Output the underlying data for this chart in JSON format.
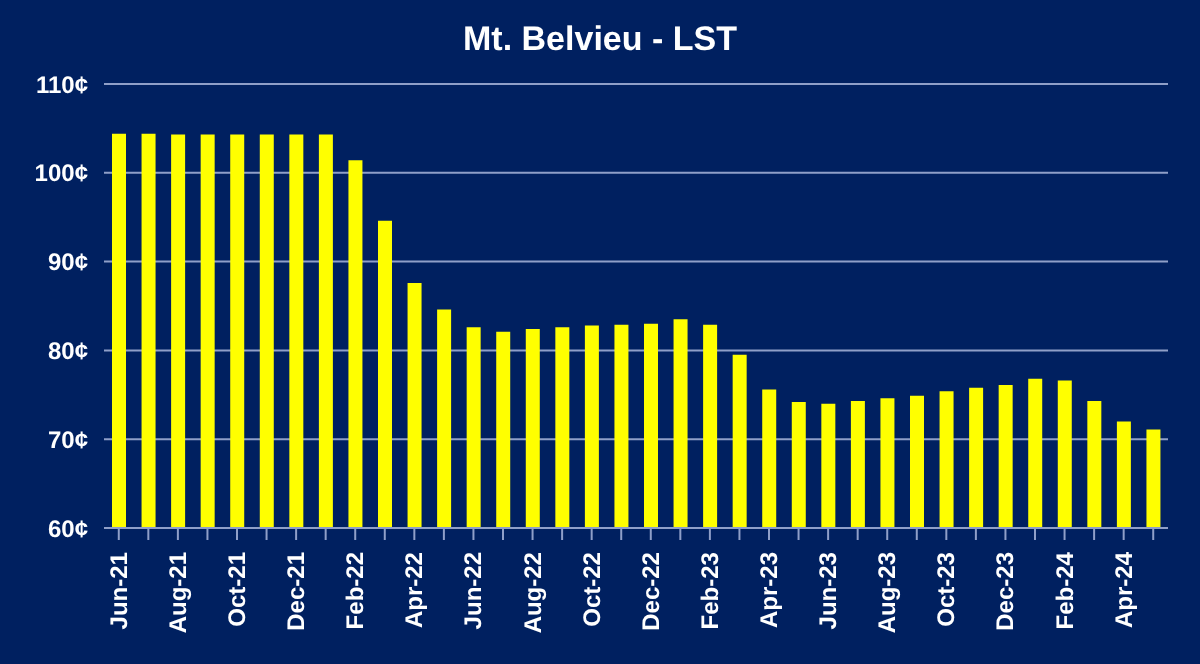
{
  "chart_data": {
    "type": "bar",
    "title": "Mt. Belvieu - LST",
    "categories": [
      "Jun-21",
      null,
      "Aug-21",
      null,
      "Oct-21",
      null,
      "Dec-21",
      null,
      "Feb-22",
      null,
      "Apr-22",
      null,
      "Jun-22",
      null,
      "Aug-22",
      null,
      "Oct-22",
      null,
      "Dec-22",
      null,
      "Feb-23",
      null,
      "Apr-23",
      null,
      "Jun-23",
      null,
      "Aug-23",
      null,
      "Oct-23",
      null,
      "Dec-23",
      null,
      "Feb-24",
      null,
      "Apr-24",
      null
    ],
    "values": [
      104.4,
      104.4,
      104.3,
      104.3,
      104.3,
      104.3,
      104.3,
      104.3,
      101.4,
      94.6,
      87.6,
      84.6,
      82.6,
      82.1,
      82.4,
      82.6,
      82.8,
      82.9,
      83.0,
      83.5,
      82.9,
      79.5,
      75.6,
      74.2,
      74.0,
      74.3,
      74.6,
      74.9,
      75.4,
      75.8,
      76.1,
      76.8,
      76.6,
      74.3,
      72.0,
      71.1
    ],
    "color": "#ffff00",
    "ylim": [
      60,
      110
    ],
    "yticks": [
      {
        "value": 60,
        "label": "60¢"
      },
      {
        "value": 70,
        "label": "70¢"
      },
      {
        "value": 80,
        "label": "80¢"
      },
      {
        "value": 90,
        "label": "90¢"
      },
      {
        "value": 100,
        "label": "100¢"
      },
      {
        "value": 110,
        "label": "110¢"
      }
    ],
    "grid": "y"
  }
}
